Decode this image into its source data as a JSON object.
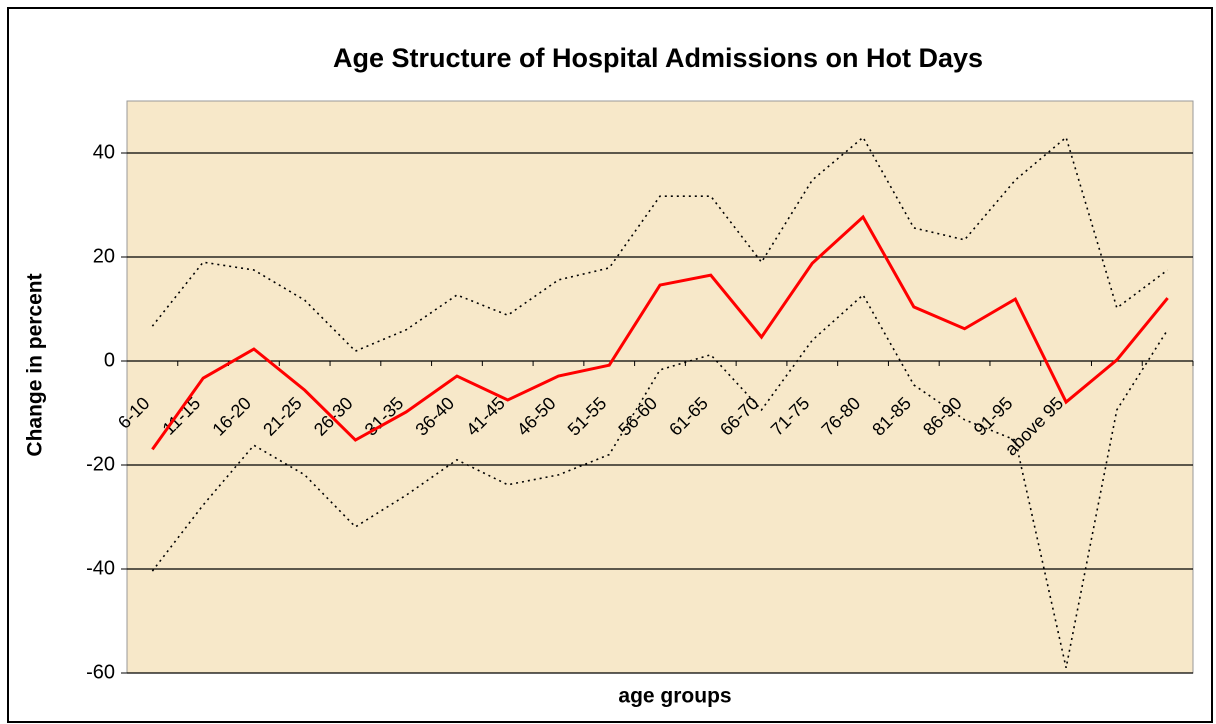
{
  "chart_data": {
    "type": "line",
    "title": "Age Structure of Hospital Admissions on Hot Days",
    "x_label": "age groups",
    "y_label": "Change in percent",
    "categories": [
      "6-10",
      "11-15",
      "16-20",
      "21-25",
      "26-30",
      "31-35",
      "36-40",
      "41-45",
      "46-50",
      "51-55",
      "56-60",
      "61-65",
      "66-70",
      "71-75",
      "76-80",
      "81-85",
      "86-90",
      "91-95",
      "above 95",
      null,
      null
    ],
    "series": [
      {
        "color": "#ff0000",
        "style": "solid",
        "values": [
          -17,
          -3.3,
          2.3,
          -5.6,
          -15.2,
          -9.8,
          -2.9,
          -7.5,
          -2.9,
          -0.8,
          14.6,
          16.5,
          4.6,
          18.8,
          27.7,
          10.4,
          6.2,
          11.9,
          -7.9,
          0.2,
          12.1
        ]
      },
      {
        "color": "#000000",
        "style": "dotted",
        "values": [
          6.7,
          19,
          17.5,
          11.7,
          1.9,
          6,
          12.7,
          8.8,
          15.6,
          17.9,
          31.7,
          31.7,
          19,
          34.8,
          43,
          25.6,
          23.3,
          34.8,
          43,
          10.2,
          17.5
        ]
      },
      {
        "color": "#000000",
        "style": "dotted",
        "values": [
          -40.4,
          -27.7,
          -16.2,
          -21.9,
          -31.9,
          -25.8,
          -19,
          -23.8,
          -21.9,
          -18,
          -1.7,
          1.2,
          -9.4,
          4,
          12.7,
          -4.6,
          -11.3,
          -15.2,
          -59,
          -9.4,
          6
        ]
      }
    ],
    "ylim": [
      -60,
      50
    ],
    "yticks": [
      -60,
      -40,
      -20,
      0,
      20,
      40
    ],
    "grid": true
  }
}
